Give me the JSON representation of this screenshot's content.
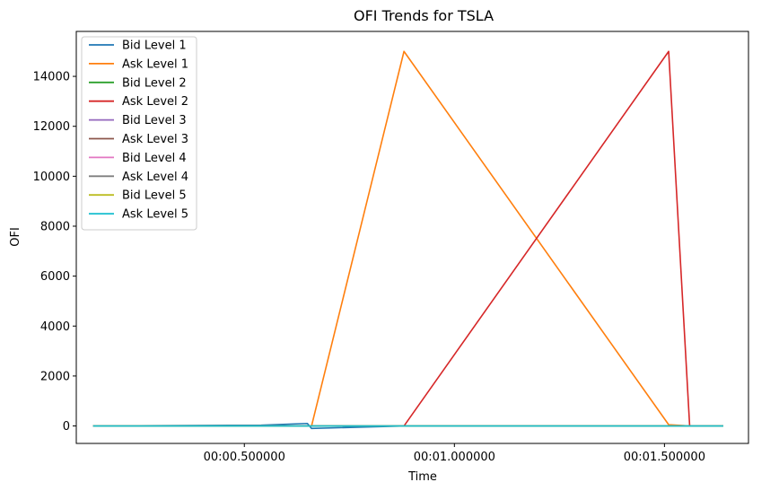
{
  "chart_data": {
    "type": "line",
    "title": "OFI Trends for TSLA",
    "xlabel": "Time",
    "ylabel": "OFI",
    "x_ticks": [
      {
        "value": 0.5,
        "label": "00:00.500000"
      },
      {
        "value": 1.0,
        "label": "00:01.000000"
      },
      {
        "value": 1.5,
        "label": "00:01.500000"
      }
    ],
    "y_ticks": [
      0,
      2000,
      4000,
      6000,
      8000,
      10000,
      12000,
      14000
    ],
    "xlim": [
      0.1,
      1.7
    ],
    "ylim": [
      -700,
      15800
    ],
    "grid": false,
    "legend_position": "upper-left",
    "series": [
      {
        "name": "Bid Level 1",
        "color": "#1f77b4",
        "x": [
          0.14,
          0.54,
          0.65,
          0.66,
          0.88,
          1.51,
          1.56,
          1.64
        ],
        "y": [
          0,
          30,
          100,
          -100,
          0,
          0,
          0,
          0
        ]
      },
      {
        "name": "Ask Level 1",
        "color": "#ff7f0e",
        "x": [
          0.14,
          0.54,
          0.65,
          0.66,
          0.88,
          1.51,
          1.56,
          1.64
        ],
        "y": [
          0,
          0,
          0,
          0,
          15000,
          50,
          0,
          0
        ]
      },
      {
        "name": "Bid Level 2",
        "color": "#2ca02c",
        "x": [
          0.14,
          0.54,
          0.65,
          0.66,
          0.88,
          1.51,
          1.56,
          1.64
        ],
        "y": [
          0,
          0,
          0,
          0,
          0,
          0,
          0,
          0
        ]
      },
      {
        "name": "Ask Level 2",
        "color": "#d62728",
        "x": [
          0.14,
          0.54,
          0.65,
          0.66,
          0.88,
          1.51,
          1.56,
          1.64
        ],
        "y": [
          0,
          0,
          0,
          0,
          0,
          15000,
          0,
          0
        ]
      },
      {
        "name": "Bid Level 3",
        "color": "#9467bd",
        "x": [
          0.14,
          0.54,
          0.65,
          0.66,
          0.88,
          1.51,
          1.56,
          1.64
        ],
        "y": [
          0,
          0,
          0,
          0,
          0,
          0,
          0,
          0
        ]
      },
      {
        "name": "Ask Level 3",
        "color": "#8c564b",
        "x": [
          0.14,
          0.54,
          0.65,
          0.66,
          0.88,
          1.51,
          1.56,
          1.64
        ],
        "y": [
          0,
          0,
          0,
          0,
          0,
          0,
          0,
          0
        ]
      },
      {
        "name": "Bid Level 4",
        "color": "#e377c2",
        "x": [
          0.14,
          0.54,
          0.65,
          0.66,
          0.88,
          1.51,
          1.56,
          1.64
        ],
        "y": [
          0,
          0,
          0,
          0,
          0,
          0,
          0,
          0
        ]
      },
      {
        "name": "Ask Level 4",
        "color": "#7f7f7f",
        "x": [
          0.14,
          0.54,
          0.65,
          0.66,
          0.88,
          1.51,
          1.56,
          1.64
        ],
        "y": [
          0,
          0,
          0,
          0,
          0,
          0,
          0,
          0
        ]
      },
      {
        "name": "Bid Level 5",
        "color": "#bcbd22",
        "x": [
          0.14,
          0.54,
          0.65,
          0.66,
          0.88,
          1.51,
          1.56,
          1.64
        ],
        "y": [
          0,
          0,
          0,
          0,
          0,
          0,
          0,
          0
        ]
      },
      {
        "name": "Ask Level 5",
        "color": "#17becf",
        "x": [
          0.14,
          0.54,
          0.65,
          0.66,
          0.88,
          1.51,
          1.56,
          1.64
        ],
        "y": [
          0,
          0,
          0,
          0,
          0,
          0,
          0,
          0
        ]
      }
    ]
  }
}
